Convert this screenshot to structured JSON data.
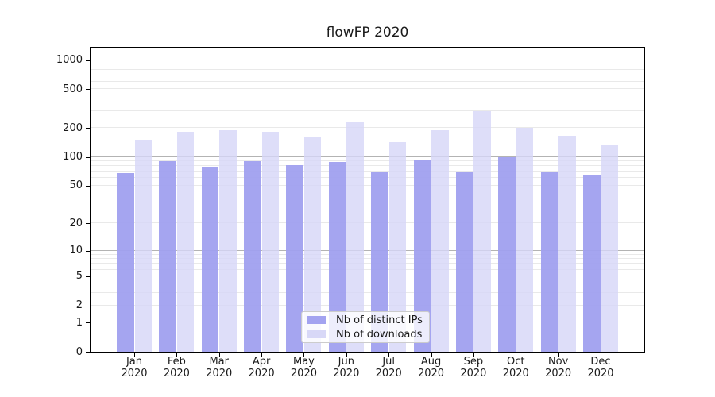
{
  "title": "flowFP 2020",
  "colors": {
    "ips_bar": "#a3a3f0",
    "downloads_bar": "#d8d8f7",
    "downloads_bar_alpha": "rgba(214,214,247,0.8)",
    "ips_bar_alpha": "rgba(160,160,239,0.95)",
    "grid_major": "#b3b3b3",
    "grid_minor": "#e9e9e9",
    "spine": "#000000",
    "text": "#1a1a1a"
  },
  "legend": {
    "items": [
      {
        "label": "Nb of distinct IPs",
        "color_key": "ips_bar"
      },
      {
        "label": "Nb of downloads",
        "color_key": "downloads_bar"
      }
    ]
  },
  "x_axis": {
    "months": [
      "Jan",
      "Feb",
      "Mar",
      "Apr",
      "May",
      "Jun",
      "Jul",
      "Aug",
      "Sep",
      "Oct",
      "Nov",
      "Dec"
    ],
    "year": "2020"
  },
  "y_axis": {
    "tick_values": [
      0,
      1,
      2,
      5,
      10,
      20,
      50,
      100,
      200,
      500,
      1000
    ]
  },
  "chart_data": {
    "type": "bar",
    "title": "flowFP 2020",
    "categories": [
      "Jan 2020",
      "Feb 2020",
      "Mar 2020",
      "Apr 2020",
      "May 2020",
      "Jun 2020",
      "Jul 2020",
      "Aug 2020",
      "Sep 2020",
      "Oct 2020",
      "Nov 2020",
      "Dec 2020"
    ],
    "series": [
      {
        "name": "Nb of distinct IPs",
        "values": [
          68,
          91,
          79,
          90,
          82,
          89,
          70,
          93,
          70,
          100,
          70,
          64
        ]
      },
      {
        "name": "Nb of downloads",
        "values": [
          150,
          182,
          188,
          182,
          164,
          230,
          143,
          190,
          300,
          200,
          165,
          135
        ]
      }
    ],
    "xlabel": "",
    "ylabel": "",
    "yscale": "log1p",
    "ylim": [
      0,
      1343
    ],
    "yticks": [
      0,
      1,
      2,
      5,
      10,
      20,
      50,
      100,
      200,
      500,
      1000
    ],
    "grid": "on",
    "legend_position": "lower-center"
  }
}
